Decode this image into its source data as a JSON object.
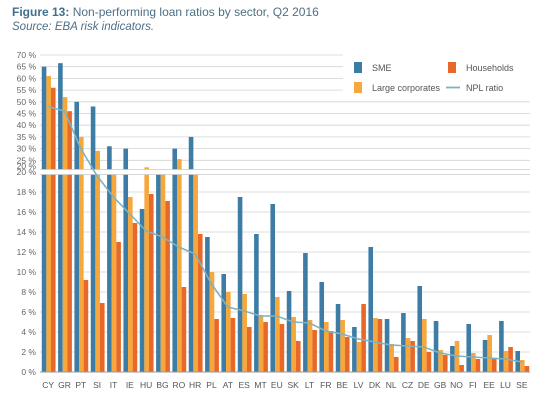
{
  "header": {
    "figure_label": "Figure 13:",
    "title": "Non-performing loan ratios by sector, Q2 2016",
    "subtitle": "Source: EBA risk indicators."
  },
  "colors": {
    "sme": "#3d7ca5",
    "households": "#e8682a",
    "large_corporates": "#f6a83c",
    "npl_ratio": "#7fb3c1"
  },
  "chart_data": {
    "type": "bar",
    "title": "Non-performing loan ratios by sector, Q2 2016",
    "xlabel": "",
    "ylabel": "",
    "axis_break": {
      "lower_range": [
        0,
        20
      ],
      "upper_range": [
        20,
        70
      ]
    },
    "y_ticks_lower": [
      "0 %",
      "2 %",
      "4 %",
      "6 %",
      "8 %",
      "10 %",
      "12 %",
      "14 %",
      "16 %",
      "18 %",
      "20 %"
    ],
    "y_ticks_upper": [
      "20 %",
      "25 %",
      "30 %",
      "35 %",
      "40 %",
      "45 %",
      "50 %",
      "55 %",
      "60 %",
      "65 %",
      "70 %"
    ],
    "legend_position": "top-right",
    "grid": true,
    "categories": [
      "CY",
      "GR",
      "PT",
      "SI",
      "IT",
      "IE",
      "HU",
      "BG",
      "RO",
      "HR",
      "PL",
      "AT",
      "ES",
      "MT",
      "EU",
      "SK",
      "LT",
      "FR",
      "BE",
      "LV",
      "DK",
      "NL",
      "CZ",
      "DE",
      "GB",
      "NO",
      "FI",
      "EE",
      "LU",
      "SE"
    ],
    "series": [
      {
        "name": "SME",
        "type": "bar",
        "values": [
          65,
          66.5,
          50,
          48,
          31,
          30,
          16.3,
          20.5,
          30,
          35,
          13.5,
          9.8,
          17.5,
          13.8,
          16.8,
          8.1,
          11.9,
          9,
          6.8,
          4.5,
          12.5,
          5.3,
          5.9,
          8.6,
          5.1,
          2.6,
          4.8,
          3.2,
          5.1,
          2.1
        ]
      },
      {
        "name": "Large corporates",
        "type": "bar",
        "values": [
          61,
          52,
          35,
          29,
          20.7,
          17.5,
          22,
          21,
          25.5,
          20.6,
          10,
          8,
          7.8,
          5.7,
          7.5,
          5.5,
          5.2,
          5,
          5.2,
          3,
          5.4,
          2.8,
          3.4,
          5.3,
          2.2,
          3.1,
          1.9,
          3.7,
          2.1,
          1.2
        ]
      },
      {
        "name": "Households",
        "type": "bar",
        "values": [
          56,
          46,
          9.2,
          6.9,
          13,
          14.9,
          17.8,
          17.1,
          8.5,
          13.8,
          5.3,
          5.4,
          4.5,
          5,
          4.8,
          3.1,
          4.2,
          4.1,
          3.5,
          6.8,
          5.3,
          1.5,
          3.1,
          2,
          1.7,
          0.7,
          1.3,
          1.3,
          2.5,
          0.6
        ]
      },
      {
        "name": "NPL ratio",
        "type": "line",
        "values": [
          48,
          46,
          30,
          19.6,
          17.5,
          15.8,
          14.1,
          13.5,
          12.5,
          11.8,
          8.8,
          6.5,
          6.1,
          5.6,
          5.6,
          5,
          4.9,
          4.1,
          3.8,
          3.3,
          3,
          2.7,
          2.6,
          2.5,
          1.9,
          1.6,
          1.5,
          1.4,
          1.3,
          1
        ]
      }
    ]
  }
}
